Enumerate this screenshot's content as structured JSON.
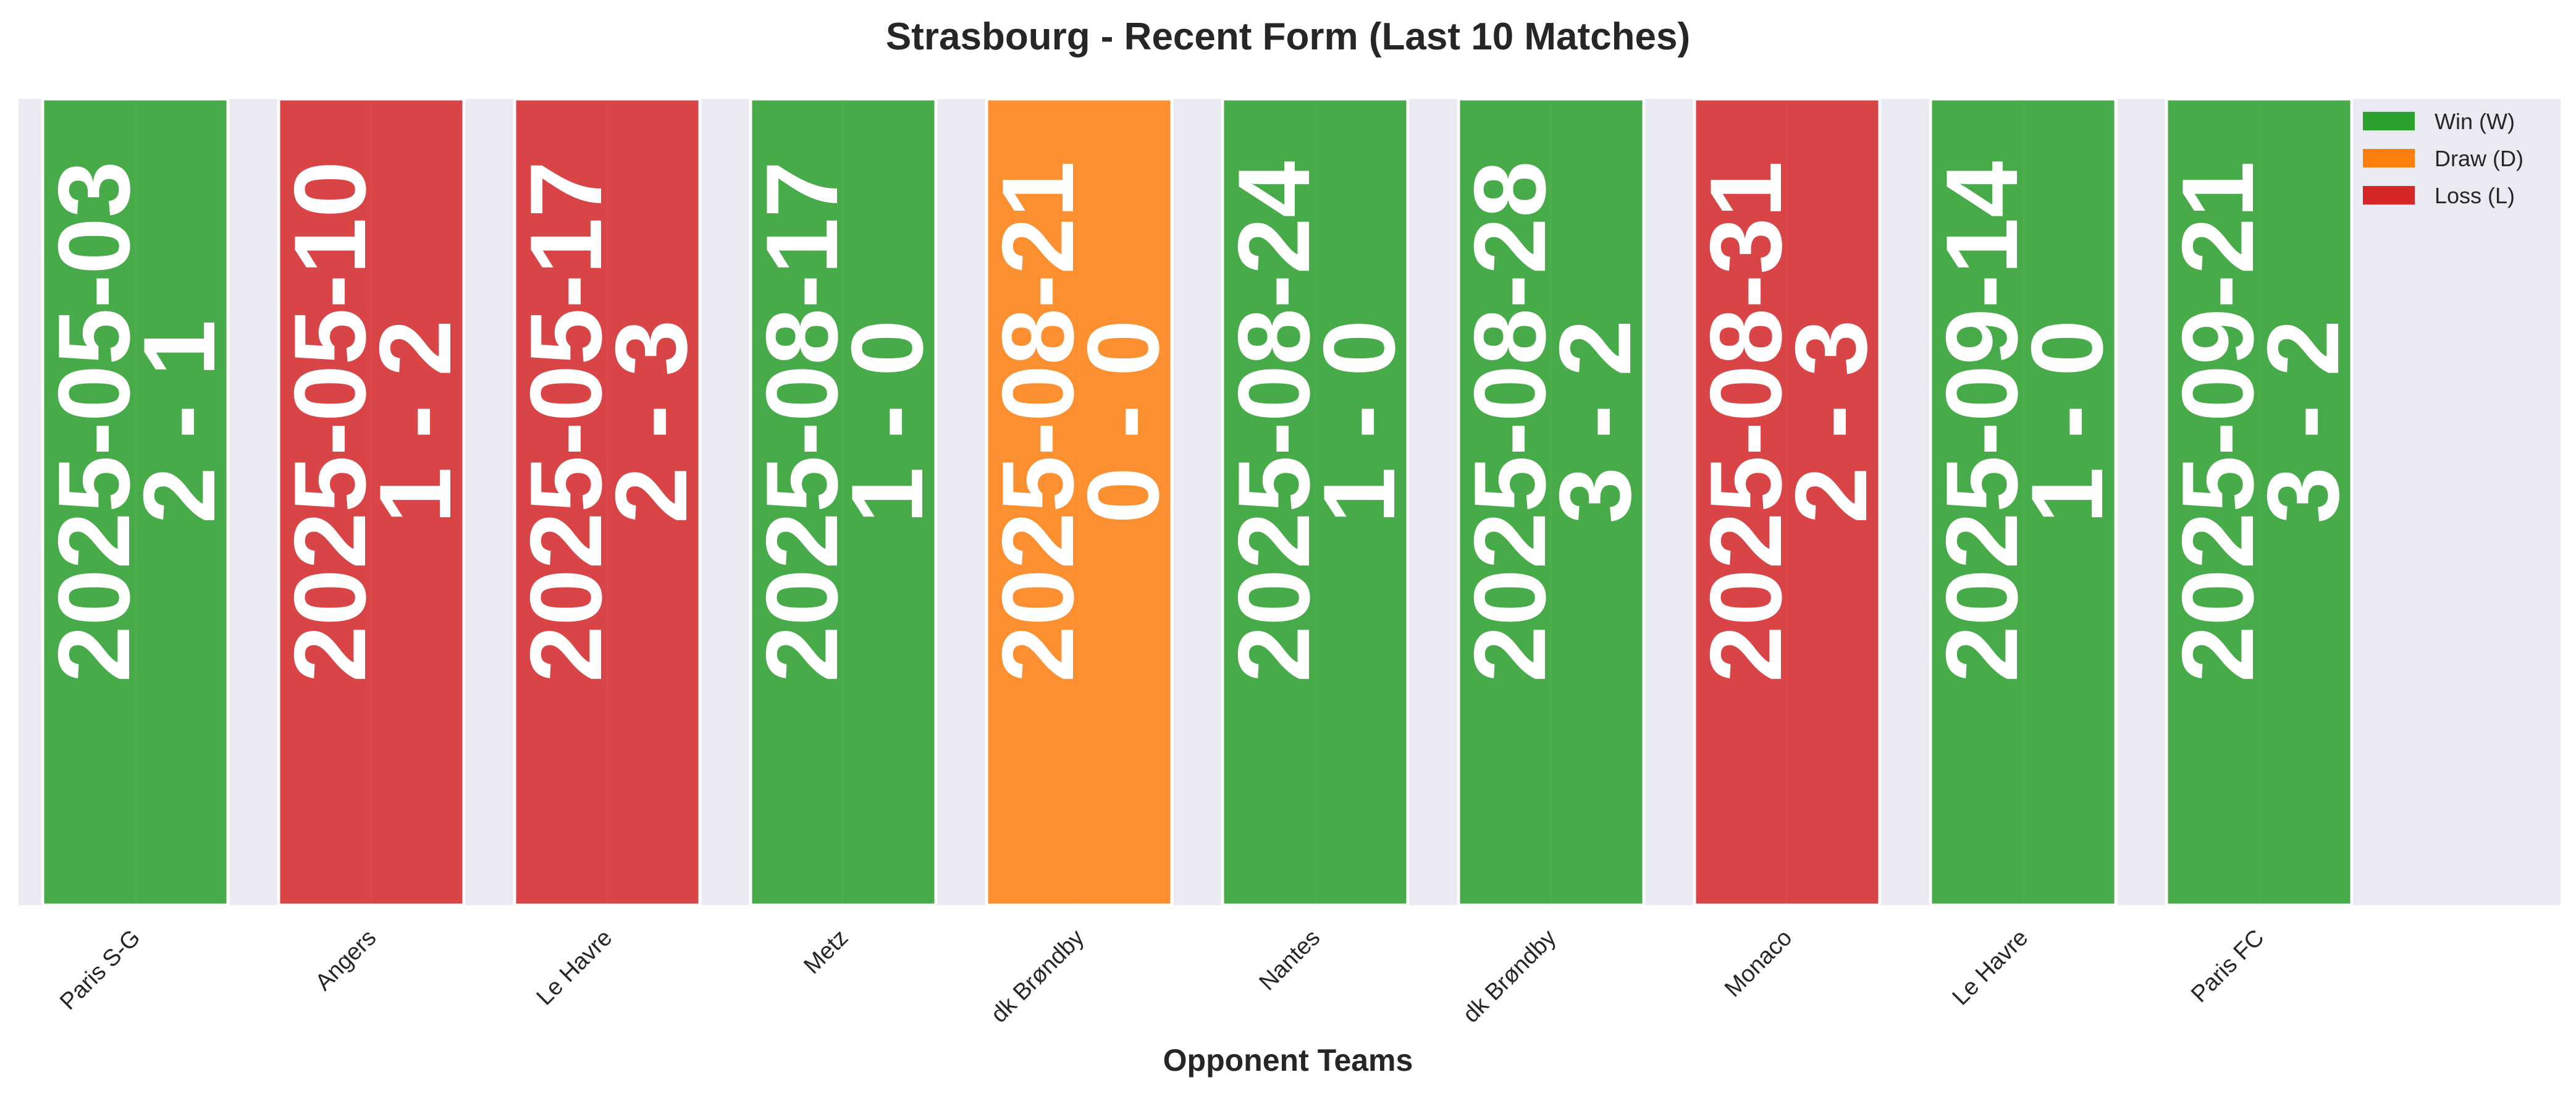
{
  "chart_data": {
    "type": "bar",
    "title": "Strasbourg - Recent Form (Last 10 Matches)",
    "xlabel": "Opponent Teams",
    "ylabel": "",
    "ylim": [
      0,
      1
    ],
    "grid": true,
    "legend_position": "top-right",
    "categories": [
      "Paris S-G",
      "Angers",
      "Le Havre",
      "Metz",
      "dk Brøndby",
      "Nantes",
      "dk Brøndby",
      "Monaco",
      "Le Havre",
      "Paris FC"
    ],
    "values": [
      1,
      1,
      1,
      1,
      1,
      1,
      1,
      1,
      1,
      1
    ],
    "results": [
      "W",
      "L",
      "L",
      "W",
      "D",
      "W",
      "W",
      "L",
      "W",
      "W"
    ],
    "dates": [
      "2025-05-03",
      "2025-05-10",
      "2025-05-17",
      "2025-08-17",
      "2025-08-21",
      "2025-08-24",
      "2025-08-28",
      "2025-08-31",
      "2025-09-14",
      "2025-09-21"
    ],
    "scores": [
      "2 - 1",
      "1 - 2",
      "2 - 3",
      "1 - 0",
      "0 - 0",
      "1 - 0",
      "3 - 2",
      "2 - 3",
      "1 - 0",
      "3 - 2"
    ],
    "colors": {
      "W": "#2ca02c",
      "D": "#ff7f0e",
      "L": "#d62728"
    },
    "legend": [
      {
        "key": "W",
        "label": "Win (W)"
      },
      {
        "key": "D",
        "label": "Draw (D)"
      },
      {
        "key": "L",
        "label": "Loss (L)"
      }
    ],
    "background": "#eaeaf2"
  }
}
